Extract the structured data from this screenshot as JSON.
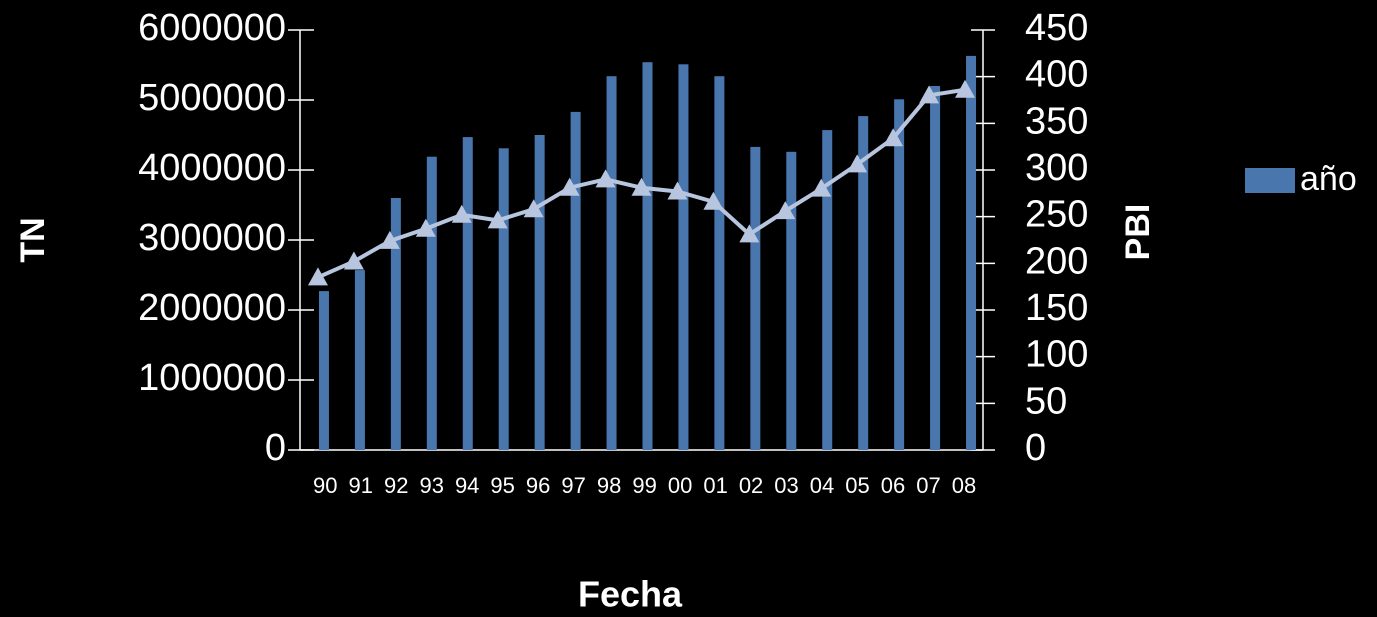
{
  "chart_data": {
    "type": "bar_line",
    "x_label": "Fecha",
    "y_label": "TN",
    "y2_label": "PBI",
    "categories": [
      "90",
      "91",
      "92",
      "93",
      "94",
      "95",
      "96",
      "97",
      "98",
      "99",
      "00",
      "01",
      "02",
      "03",
      "04",
      "05",
      "06",
      "07",
      "08"
    ],
    "series": [
      {
        "name": "año",
        "type": "bar",
        "color": "#4a76ae",
        "values": [
          2270000,
          2570000,
          3600000,
          4190000,
          4470000,
          4310000,
          4500000,
          4830000,
          5340000,
          5540000,
          5510000,
          5340000,
          4330000,
          4260000,
          4570000,
          4770000,
          5010000,
          5200000,
          5630000
        ]
      },
      {
        "type": "line",
        "axis": "y2",
        "color": "#b8c5df",
        "values": [
          185,
          202,
          224,
          237,
          252,
          246,
          258,
          281,
          290,
          281,
          277,
          266,
          231,
          256,
          280,
          306,
          334,
          380,
          386
        ]
      }
    ],
    "ylim": [
      0,
      6000000
    ],
    "yticks": [
      0,
      1000000,
      2000000,
      3000000,
      4000000,
      5000000,
      6000000
    ],
    "y2lim": [
      0,
      450
    ],
    "y2ticks": [
      0,
      50,
      100,
      150,
      200,
      250,
      300,
      350,
      400,
      450
    ],
    "legend": "right"
  }
}
